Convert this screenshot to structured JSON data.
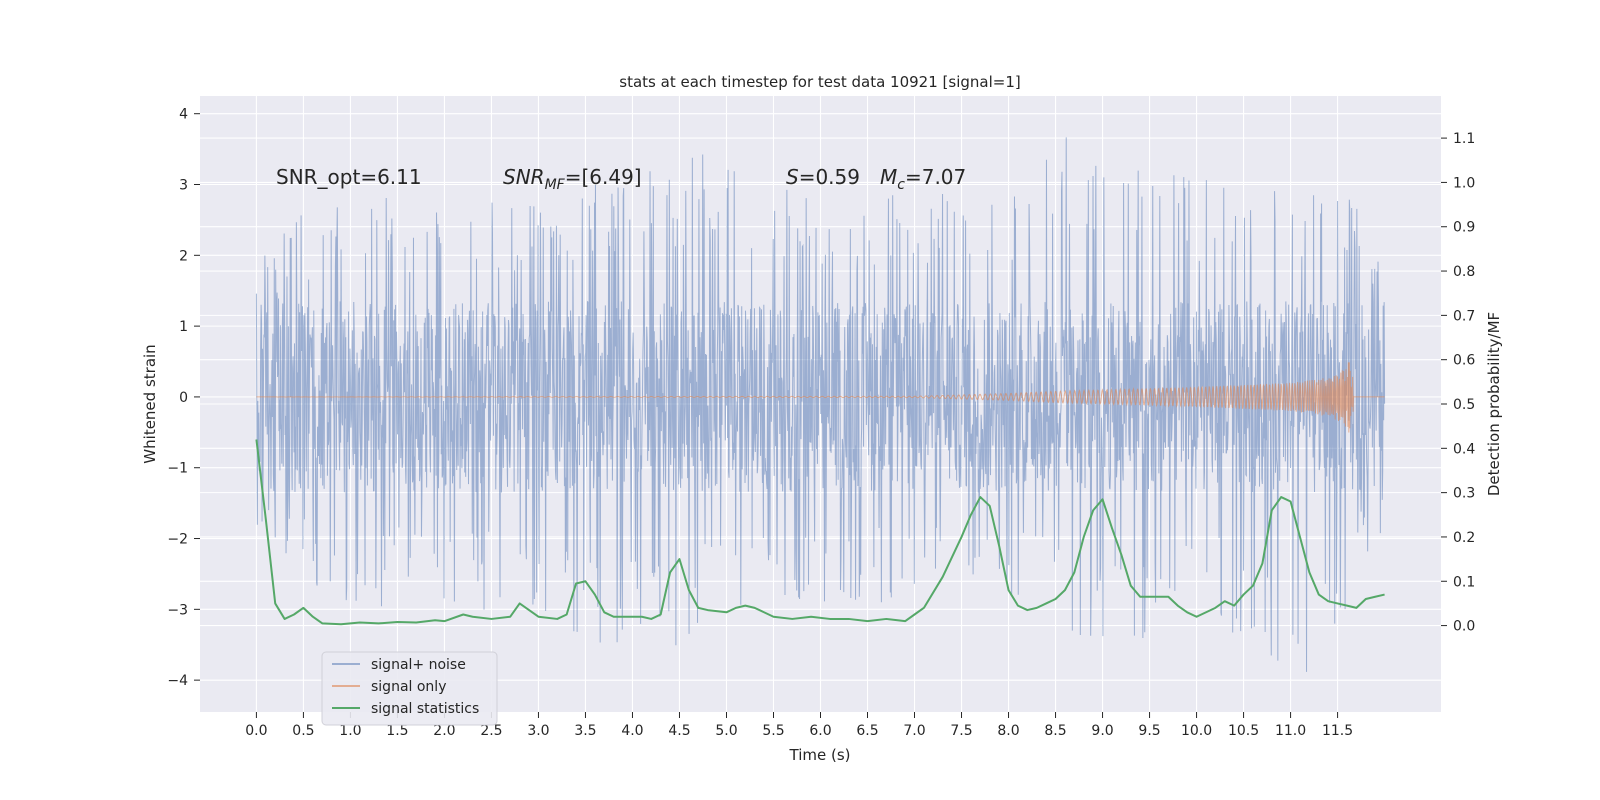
{
  "chart_data": {
    "type": "line",
    "title": "stats at each timestep for test data 10921 [signal=1]",
    "xlabel": "Time (s)",
    "ylabel_left": "Whitened strain",
    "ylabel_right": "Detection probability/MF",
    "xlim": [
      -0.6,
      12.6
    ],
    "ylim_left": [
      -4.45,
      4.25
    ],
    "ylim_right": [
      -0.195,
      1.195
    ],
    "x_ticks": [
      "0.0",
      "0.5",
      "1.0",
      "1.5",
      "2.0",
      "2.5",
      "3.0",
      "3.5",
      "4.0",
      "4.5",
      "5.0",
      "5.5",
      "6.0",
      "6.5",
      "7.0",
      "7.5",
      "8.0",
      "8.5",
      "9.0",
      "9.5",
      "10.0",
      "10.5",
      "11.0",
      "11.5"
    ],
    "y_ticks_left": [
      "−4",
      "−3",
      "−2",
      "−1",
      "0",
      "1",
      "2",
      "3",
      "4"
    ],
    "y_ticks_right": [
      "0.0",
      "0.1",
      "0.2",
      "0.3",
      "0.4",
      "0.5",
      "0.6",
      "0.7",
      "0.8",
      "0.9",
      "1.0",
      "1.1"
    ],
    "grid": true,
    "legend_position": "lower-left",
    "annotations": {
      "snr_opt": "SNR_opt=6.11",
      "snr_mf_main": "SNR",
      "snr_mf_sub": "MF",
      "snr_mf_value": "=[6.49]",
      "s_sym": "S",
      "s_value": "=0.59",
      "mc_sym": "M",
      "mc_sub": "c",
      "mc_value": "=7.07"
    },
    "colors": {
      "signal_noise": "#4c72b0",
      "signal_only": "#dd8452",
      "signal_statistics": "#55a868",
      "plot_background": "#eaeaf2",
      "grid": "#ffffff"
    },
    "series": [
      {
        "name": "signal+ noise",
        "axis": "left",
        "t_range": [
          0.0,
          12.0
        ],
        "envelope_upper": [
          [
            0.0,
            1.9
          ],
          [
            0.5,
            2.6
          ],
          [
            1.0,
            2.9
          ],
          [
            2.0,
            2.8
          ],
          [
            3.0,
            2.9
          ],
          [
            4.0,
            3.3
          ],
          [
            5.0,
            3.5
          ],
          [
            6.0,
            2.7
          ],
          [
            7.0,
            2.9
          ],
          [
            8.0,
            2.9
          ],
          [
            8.4,
            3.9
          ],
          [
            9.0,
            3.3
          ],
          [
            10.0,
            3.1
          ],
          [
            11.0,
            2.9
          ],
          [
            11.6,
            3.2
          ],
          [
            12.0,
            1.8
          ]
        ],
        "envelope_lower": [
          [
            0.0,
            -1.9
          ],
          [
            0.5,
            -2.7
          ],
          [
            1.0,
            -3.0
          ],
          [
            2.0,
            -2.9
          ],
          [
            3.0,
            -3.2
          ],
          [
            4.3,
            -3.85
          ],
          [
            5.0,
            -3.0
          ],
          [
            6.0,
            -2.9
          ],
          [
            7.0,
            -3.0
          ],
          [
            8.0,
            -2.8
          ],
          [
            8.5,
            -3.3
          ],
          [
            9.3,
            -3.55
          ],
          [
            10.0,
            -3.0
          ],
          [
            11.2,
            -4.05
          ],
          [
            11.6,
            -3.1
          ],
          [
            12.0,
            -1.8
          ]
        ]
      },
      {
        "name": "signal only",
        "axis": "left",
        "amplitude_envelope": [
          [
            0.0,
            0.0
          ],
          [
            7.0,
            0.01
          ],
          [
            7.5,
            0.03
          ],
          [
            8.0,
            0.05
          ],
          [
            8.5,
            0.08
          ],
          [
            9.0,
            0.1
          ],
          [
            9.5,
            0.12
          ],
          [
            10.0,
            0.14
          ],
          [
            10.5,
            0.17
          ],
          [
            11.0,
            0.2
          ],
          [
            11.3,
            0.25
          ],
          [
            11.5,
            0.33
          ],
          [
            11.6,
            0.45
          ],
          [
            11.66,
            0.62
          ],
          [
            11.67,
            0.0
          ],
          [
            12.0,
            0.0
          ]
        ]
      },
      {
        "name": "signal statistics",
        "axis": "right",
        "points": [
          [
            0.0,
            0.42
          ],
          [
            0.1,
            0.24
          ],
          [
            0.2,
            0.05
          ],
          [
            0.3,
            0.015
          ],
          [
            0.4,
            0.025
          ],
          [
            0.5,
            0.04
          ],
          [
            0.6,
            0.02
          ],
          [
            0.7,
            0.005
          ],
          [
            0.9,
            0.003
          ],
          [
            1.1,
            0.007
          ],
          [
            1.3,
            0.005
          ],
          [
            1.5,
            0.008
          ],
          [
            1.7,
            0.007
          ],
          [
            1.9,
            0.012
          ],
          [
            2.0,
            0.01
          ],
          [
            2.2,
            0.025
          ],
          [
            2.3,
            0.02
          ],
          [
            2.5,
            0.015
          ],
          [
            2.7,
            0.02
          ],
          [
            2.8,
            0.05
          ],
          [
            2.9,
            0.035
          ],
          [
            3.0,
            0.02
          ],
          [
            3.2,
            0.015
          ],
          [
            3.3,
            0.025
          ],
          [
            3.4,
            0.095
          ],
          [
            3.5,
            0.1
          ],
          [
            3.6,
            0.07
          ],
          [
            3.7,
            0.03
          ],
          [
            3.8,
            0.02
          ],
          [
            3.9,
            0.02
          ],
          [
            4.1,
            0.02
          ],
          [
            4.2,
            0.015
          ],
          [
            4.3,
            0.025
          ],
          [
            4.4,
            0.12
          ],
          [
            4.5,
            0.15
          ],
          [
            4.6,
            0.08
          ],
          [
            4.7,
            0.04
          ],
          [
            4.8,
            0.035
          ],
          [
            5.0,
            0.03
          ],
          [
            5.1,
            0.04
          ],
          [
            5.2,
            0.045
          ],
          [
            5.3,
            0.04
          ],
          [
            5.5,
            0.02
          ],
          [
            5.7,
            0.015
          ],
          [
            5.9,
            0.02
          ],
          [
            6.1,
            0.015
          ],
          [
            6.3,
            0.015
          ],
          [
            6.5,
            0.01
          ],
          [
            6.7,
            0.015
          ],
          [
            6.9,
            0.01
          ],
          [
            7.0,
            0.025
          ],
          [
            7.1,
            0.04
          ],
          [
            7.3,
            0.11
          ],
          [
            7.5,
            0.2
          ],
          [
            7.6,
            0.25
          ],
          [
            7.7,
            0.29
          ],
          [
            7.8,
            0.27
          ],
          [
            7.9,
            0.18
          ],
          [
            8.0,
            0.08
          ],
          [
            8.1,
            0.045
          ],
          [
            8.2,
            0.035
          ],
          [
            8.3,
            0.04
          ],
          [
            8.4,
            0.05
          ],
          [
            8.5,
            0.06
          ],
          [
            8.6,
            0.08
          ],
          [
            8.7,
            0.12
          ],
          [
            8.8,
            0.2
          ],
          [
            8.9,
            0.26
          ],
          [
            9.0,
            0.285
          ],
          [
            9.1,
            0.22
          ],
          [
            9.2,
            0.16
          ],
          [
            9.3,
            0.09
          ],
          [
            9.4,
            0.065
          ],
          [
            9.5,
            0.065
          ],
          [
            9.7,
            0.065
          ],
          [
            9.8,
            0.045
          ],
          [
            9.9,
            0.03
          ],
          [
            10.0,
            0.02
          ],
          [
            10.2,
            0.04
          ],
          [
            10.3,
            0.055
          ],
          [
            10.4,
            0.045
          ],
          [
            10.5,
            0.07
          ],
          [
            10.6,
            0.09
          ],
          [
            10.7,
            0.14
          ],
          [
            10.8,
            0.26
          ],
          [
            10.9,
            0.29
          ],
          [
            11.0,
            0.28
          ],
          [
            11.1,
            0.2
          ],
          [
            11.2,
            0.12
          ],
          [
            11.3,
            0.07
          ],
          [
            11.4,
            0.055
          ],
          [
            11.5,
            0.05
          ],
          [
            11.6,
            0.045
          ],
          [
            11.7,
            0.04
          ],
          [
            11.8,
            0.06
          ],
          [
            11.9,
            0.065
          ],
          [
            12.0,
            0.07
          ]
        ]
      }
    ]
  },
  "legend": {
    "items": [
      {
        "label": "signal+ noise",
        "color": "#4c72b0"
      },
      {
        "label": "signal only",
        "color": "#dd8452"
      },
      {
        "label": "signal statistics",
        "color": "#55a868"
      }
    ]
  }
}
